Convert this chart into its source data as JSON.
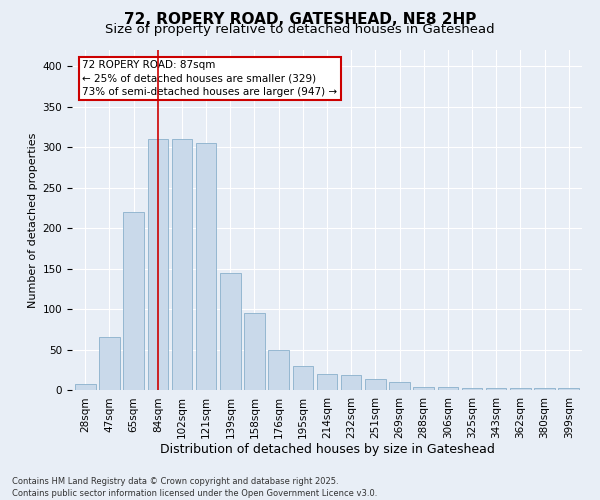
{
  "title": "72, ROPERY ROAD, GATESHEAD, NE8 2HP",
  "subtitle": "Size of property relative to detached houses in Gateshead",
  "xlabel": "Distribution of detached houses by size in Gateshead",
  "ylabel": "Number of detached properties",
  "categories": [
    "28sqm",
    "47sqm",
    "65sqm",
    "84sqm",
    "102sqm",
    "121sqm",
    "139sqm",
    "158sqm",
    "176sqm",
    "195sqm",
    "214sqm",
    "232sqm",
    "251sqm",
    "269sqm",
    "288sqm",
    "306sqm",
    "325sqm",
    "343sqm",
    "362sqm",
    "380sqm",
    "399sqm"
  ],
  "values": [
    7,
    65,
    220,
    310,
    310,
    305,
    145,
    95,
    50,
    30,
    20,
    18,
    13,
    10,
    4,
    4,
    3,
    2,
    2,
    2,
    3
  ],
  "bar_color": "#c9d9ea",
  "bar_edge_color": "#8ab0cc",
  "vline_x": 3.0,
  "vline_color": "#cc0000",
  "annotation_text": "72 ROPERY ROAD: 87sqm\n← 25% of detached houses are smaller (329)\n73% of semi-detached houses are larger (947) →",
  "annotation_box_facecolor": "#ffffff",
  "annotation_box_edge": "#cc0000",
  "ylim": [
    0,
    420
  ],
  "yticks": [
    0,
    50,
    100,
    150,
    200,
    250,
    300,
    350,
    400
  ],
  "title_fontsize": 11,
  "subtitle_fontsize": 9.5,
  "xlabel_fontsize": 9,
  "ylabel_fontsize": 8,
  "tick_fontsize": 7.5,
  "annotation_fontsize": 7.5,
  "footer_line1": "Contains HM Land Registry data © Crown copyright and database right 2025.",
  "footer_line2": "Contains public sector information licensed under the Open Government Licence v3.0.",
  "background_color": "#e8eef6",
  "plot_background": "#e8eef6",
  "grid_color": "#ffffff"
}
